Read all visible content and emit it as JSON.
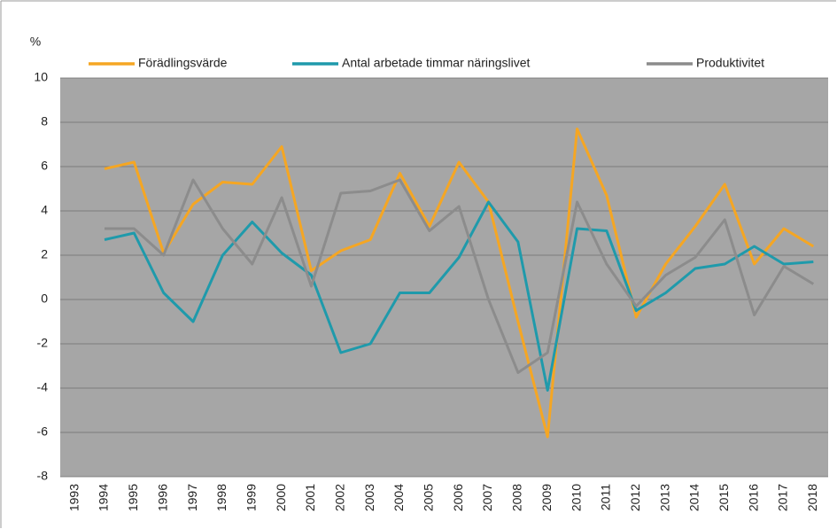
{
  "chart_data": {
    "type": "line",
    "ylabel": "%",
    "categories": [
      "1993",
      "1994",
      "1995",
      "1996",
      "1997",
      "1998",
      "1999",
      "2000",
      "2001",
      "2002",
      "2003",
      "2004",
      "2005",
      "2006",
      "2007",
      "2008",
      "2009",
      "2010",
      "2011",
      "2012",
      "2013",
      "2014",
      "2015",
      "2016",
      "2017",
      "2018"
    ],
    "series": [
      {
        "name": "Förädlingsvärde",
        "color": "#f5a623",
        "values": [
          null,
          5.9,
          6.2,
          2.1,
          4.3,
          5.3,
          5.2,
          6.9,
          1.3,
          2.2,
          2.7,
          5.7,
          3.3,
          6.2,
          4.4,
          -1.0,
          -6.2,
          7.7,
          4.7,
          -0.8,
          1.6,
          3.3,
          5.2,
          1.6,
          3.2,
          2.4
        ]
      },
      {
        "name": "Antal arbetade timmar näringslivet",
        "color": "#1f9aab",
        "values": [
          null,
          2.7,
          3.0,
          0.3,
          -1.0,
          2.0,
          3.5,
          2.1,
          1.1,
          -2.4,
          -2.0,
          0.3,
          0.3,
          1.9,
          4.4,
          2.6,
          -4.1,
          3.2,
          3.1,
          -0.5,
          0.3,
          1.4,
          1.6,
          2.4,
          1.6,
          1.7
        ]
      },
      {
        "name": "Produktivitet",
        "color": "#8c8c8c",
        "values": [
          null,
          3.2,
          3.2,
          2.0,
          5.4,
          3.2,
          1.6,
          4.6,
          0.6,
          4.8,
          4.9,
          5.4,
          3.1,
          4.2,
          0.0,
          -3.3,
          -2.4,
          4.4,
          1.6,
          -0.3,
          1.1,
          1.9,
          3.6,
          -0.7,
          1.5,
          0.7
        ]
      }
    ],
    "ylim": [
      -8,
      10
    ],
    "yticks": [
      -8,
      -6,
      -4,
      -2,
      0,
      2,
      4,
      6,
      8,
      10
    ],
    "grid": true,
    "legend": "top"
  }
}
